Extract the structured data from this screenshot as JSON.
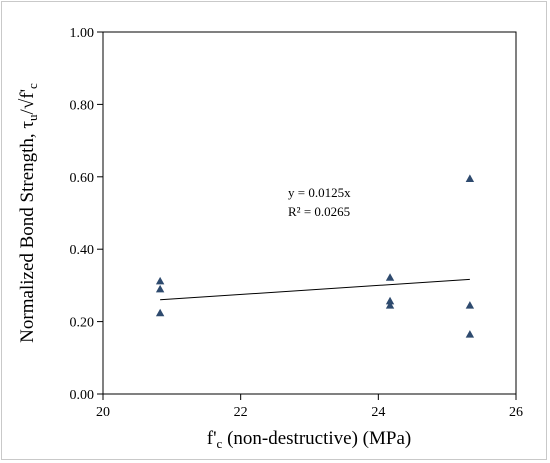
{
  "chart_data": {
    "type": "scatter",
    "title": "",
    "xlabel": "f'c (non-destructive) (MPa)",
    "ylabel": "Normalized Bond Strength, τu/√f'c",
    "xlim": [
      20,
      26
    ],
    "ylim": [
      0,
      1.0
    ],
    "x_ticks": [
      "20",
      "22",
      "24",
      "26"
    ],
    "y_ticks": [
      "0.00",
      "0.20",
      "0.40",
      "0.60",
      "0.80",
      "1.00"
    ],
    "grid": false,
    "legend": "none",
    "marker": "triangle",
    "marker_color": "#2e4a6e",
    "series": [
      {
        "points": [
          {
            "x": 20.83,
            "y": 0.312
          },
          {
            "x": 20.83,
            "y": 0.29
          },
          {
            "x": 20.83,
            "y": 0.224
          },
          {
            "x": 24.17,
            "y": 0.322
          },
          {
            "x": 24.17,
            "y": 0.257
          },
          {
            "x": 24.17,
            "y": 0.245
          },
          {
            "x": 25.33,
            "y": 0.595
          },
          {
            "x": 25.33,
            "y": 0.245
          },
          {
            "x": 25.33,
            "y": 0.165
          }
        ]
      }
    ],
    "trendline": {
      "type": "linear",
      "slope": 0.0125,
      "intercept": 0,
      "x_range": [
        20.83,
        25.33
      ],
      "equation": "y = 0.0125x",
      "r_squared": "R² = 0.0265"
    }
  }
}
